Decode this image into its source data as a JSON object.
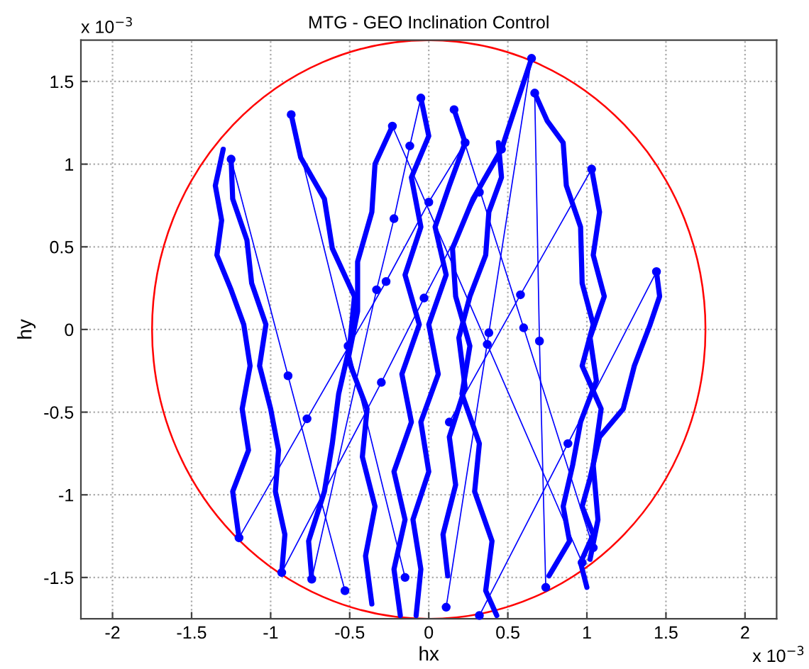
{
  "chart_data": {
    "type": "line",
    "title": "MTG - GEO Inclination Control",
    "xlabel": "hx",
    "ylabel": "hy",
    "annotations": [
      "x 10$^{−3}$",
      "x 10$^{−3}$"
    ],
    "xlim": [
      -2.2,
      2.2
    ],
    "ylim": [
      -1.75,
      1.75
    ],
    "xticks": [
      -2,
      -1.5,
      -1,
      -0.5,
      0,
      0.5,
      1,
      1.5,
      2
    ],
    "yticks": [
      -1.5,
      -1,
      -0.5,
      0,
      0.5,
      1,
      1.5
    ],
    "grid": true,
    "legend": false,
    "series": [
      {
        "color": "#0000ff",
        "x": [
          -1.3,
          -1.35,
          -1.31,
          -1.34,
          -1.25,
          -1.17,
          -1.13,
          -1.18,
          -1.14,
          -1.24,
          -1.2
        ],
        "values": [
          1.09,
          0.87,
          0.66,
          0.45,
          0.24,
          0.03,
          -0.22,
          -0.48,
          -0.73,
          -0.98,
          -1.26
        ]
      },
      {
        "color": "#0000ff",
        "x": [
          -1.25,
          -1.24,
          -1.15,
          -1.12,
          -1.03,
          -1.07,
          -1.0,
          -0.95,
          -0.97,
          -0.91,
          -0.93
        ],
        "values": [
          1.03,
          0.79,
          0.54,
          0.28,
          0.03,
          -0.22,
          -0.48,
          -0.73,
          -0.98,
          -1.24,
          -1.47
        ]
      },
      {
        "color": "#0000ff",
        "x": [
          -0.87,
          -0.81,
          -0.66,
          -0.61,
          -0.47,
          -0.5,
          -0.57,
          -0.61,
          -0.66,
          -0.76,
          -0.74
        ],
        "values": [
          1.3,
          1.04,
          0.79,
          0.49,
          0.2,
          -0.1,
          -0.39,
          -0.69,
          -0.98,
          -1.28,
          -1.51
        ]
      },
      {
        "color": "#0000ff",
        "x": [
          -0.23,
          -0.34,
          -0.36,
          -0.45,
          -0.45,
          -0.51,
          -0.39,
          -0.42,
          -0.34,
          -0.4,
          -0.36
        ],
        "values": [
          1.23,
          1.0,
          0.71,
          0.41,
          0.11,
          -0.18,
          -0.48,
          -0.77,
          -1.07,
          -1.37,
          -1.66
        ]
      },
      {
        "color": "#0000ff",
        "x": [
          -0.05,
          0.0,
          -0.11,
          -0.05,
          -0.15,
          -0.06,
          -0.17,
          -0.11,
          -0.22,
          -0.15,
          -0.22,
          -0.18
        ],
        "values": [
          1.4,
          1.17,
          0.92,
          0.62,
          0.33,
          0.03,
          -0.27,
          -0.56,
          -0.86,
          -1.15,
          -1.45,
          -1.73
        ]
      },
      {
        "color": "#0000ff",
        "x": [
          0.16,
          0.23,
          0.13,
          0.04,
          0.11,
          0.0,
          0.06,
          -0.05,
          0.0,
          -0.1,
          -0.05,
          -0.08
        ],
        "values": [
          1.33,
          1.13,
          0.87,
          0.62,
          0.33,
          0.03,
          -0.27,
          -0.56,
          -0.86,
          -1.15,
          -1.45,
          -1.73
        ]
      },
      {
        "color": "#0000ff",
        "x": [
          0.65,
          0.56,
          0.46,
          0.28,
          0.15,
          0.17,
          0.26,
          0.21,
          0.32,
          0.29,
          0.4,
          0.36,
          0.43
        ],
        "values": [
          1.64,
          1.38,
          1.09,
          0.79,
          0.49,
          0.2,
          -0.1,
          -0.39,
          -0.69,
          -0.98,
          -1.28,
          -1.58,
          -1.73
        ]
      },
      {
        "color": "#0000ff",
        "x": [
          0.67,
          0.75,
          0.85,
          0.87,
          0.96,
          0.97,
          1.04,
          0.97,
          1.09,
          1.04,
          1.07,
          1.02
        ],
        "values": [
          1.43,
          1.26,
          1.13,
          0.87,
          0.62,
          0.28,
          0.03,
          -0.22,
          -0.48,
          -0.82,
          -1.15,
          -1.39
        ]
      },
      {
        "color": "#0000ff",
        "x": [
          1.03,
          1.08,
          1.04,
          1.11,
          1.02,
          1.06,
          0.96,
          0.91,
          0.85,
          0.89,
          0.76
        ],
        "values": [
          0.97,
          0.71,
          0.45,
          0.2,
          -0.05,
          -0.31,
          -0.56,
          -0.82,
          -1.07,
          -1.28,
          -1.49
        ]
      },
      {
        "color": "#0000ff",
        "x": [
          1.44,
          1.46,
          1.4,
          1.3,
          1.23,
          1.08,
          1.02,
          0.97,
          1.04,
          0.96,
          1.0
        ],
        "values": [
          0.35,
          0.2,
          0.03,
          -0.22,
          -0.48,
          -0.65,
          -0.9,
          -1.07,
          -1.24,
          -1.41,
          -1.56
        ]
      },
      {
        "color": "#0000ff",
        "x": [
          0.44,
          0.46,
          0.38,
          0.36,
          0.26,
          0.19,
          0.23,
          0.13,
          0.17,
          0.09,
          0.12
        ],
        "values": [
          1.13,
          0.92,
          0.71,
          0.45,
          0.2,
          -0.05,
          -0.35,
          -0.65,
          -0.94,
          -1.24,
          -1.49
        ]
      },
      {
        "color": "#0000ff",
        "marker": "circle",
        "x": [
          -1.25,
          -0.89,
          -0.53
        ],
        "values": [
          1.03,
          -0.28,
          -1.58
        ]
      },
      {
        "color": "#0000ff",
        "marker": "circle",
        "x": [
          -0.87,
          -0.51,
          -0.15
        ],
        "values": [
          1.3,
          -0.1,
          -1.5
        ]
      },
      {
        "color": "#0000ff",
        "marker": "circle",
        "x": [
          -1.2,
          -0.77,
          -0.27,
          0.0,
          0.23
        ],
        "values": [
          -1.26,
          -0.54,
          0.29,
          0.77,
          1.13
        ]
      },
      {
        "color": "#0000ff",
        "marker": "circle",
        "x": [
          -0.93,
          -0.3,
          -0.03,
          0.32,
          0.46
        ],
        "values": [
          -1.47,
          -0.32,
          0.19,
          0.83,
          1.09
        ]
      },
      {
        "color": "#0000ff",
        "marker": "circle",
        "x": [
          0.67,
          0.7,
          0.74
        ],
        "values": [
          1.43,
          -0.07,
          -1.56
        ]
      },
      {
        "color": "#0000ff",
        "marker": "circle",
        "x": [
          0.65,
          0.38,
          0.11
        ],
        "values": [
          1.64,
          -0.02,
          -1.68
        ]
      },
      {
        "color": "#0000ff",
        "marker": "circle",
        "x": [
          1.44,
          0.88,
          0.32
        ],
        "values": [
          0.35,
          -0.69,
          -1.73
        ]
      },
      {
        "color": "#0000ff",
        "marker": "circle",
        "x": [
          1.03,
          0.58,
          0.13
        ],
        "values": [
          0.97,
          0.21,
          -0.56
        ]
      },
      {
        "color": "#0000ff",
        "marker": "circle",
        "x": [
          0.16,
          0.6,
          1.04
        ],
        "values": [
          1.33,
          0.01,
          -1.32
        ]
      },
      {
        "color": "#0000ff",
        "marker": "circle",
        "x": [
          -0.23,
          0.37,
          0.97
        ],
        "values": [
          1.23,
          -0.09,
          -1.41
        ]
      },
      {
        "color": "#0000ff",
        "marker": "circle",
        "x": [
          -0.74,
          -0.33,
          -0.22,
          -0.12,
          -0.05
        ],
        "values": [
          -1.51,
          0.24,
          0.67,
          1.11,
          1.4
        ]
      }
    ]
  }
}
